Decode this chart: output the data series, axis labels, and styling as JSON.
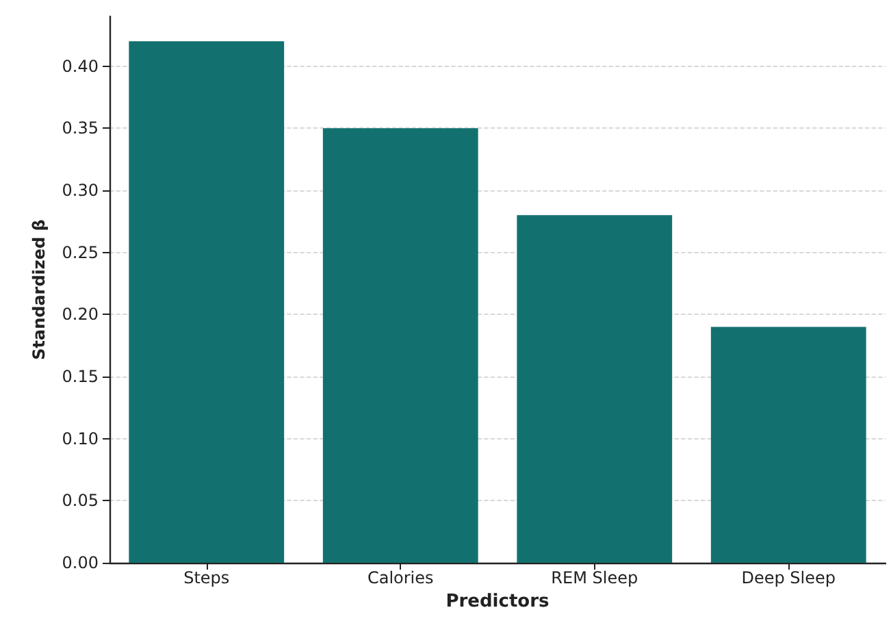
{
  "chart_data": {
    "type": "bar",
    "xlabel": "Predictors",
    "ylabel": "Standardized β",
    "categories": [
      "Steps",
      "Calories",
      "REM Sleep",
      "Deep Sleep"
    ],
    "values": [
      0.42,
      0.35,
      0.28,
      0.19
    ],
    "color": "#12716f",
    "ylim": [
      0,
      0.44
    ],
    "yticks": [
      {
        "value": 0,
        "label": "0.00"
      },
      {
        "value": 0.05,
        "label": "0.05"
      },
      {
        "value": 0.1,
        "label": "0.10"
      },
      {
        "value": 0.15,
        "label": "0.15"
      },
      {
        "value": 0.2,
        "label": "0.20"
      },
      {
        "value": 0.25,
        "label": "0.25"
      },
      {
        "value": 0.3,
        "label": "0.30"
      },
      {
        "value": 0.35,
        "label": "0.35"
      },
      {
        "value": 0.4,
        "label": "0.40"
      }
    ],
    "grid": "y"
  }
}
